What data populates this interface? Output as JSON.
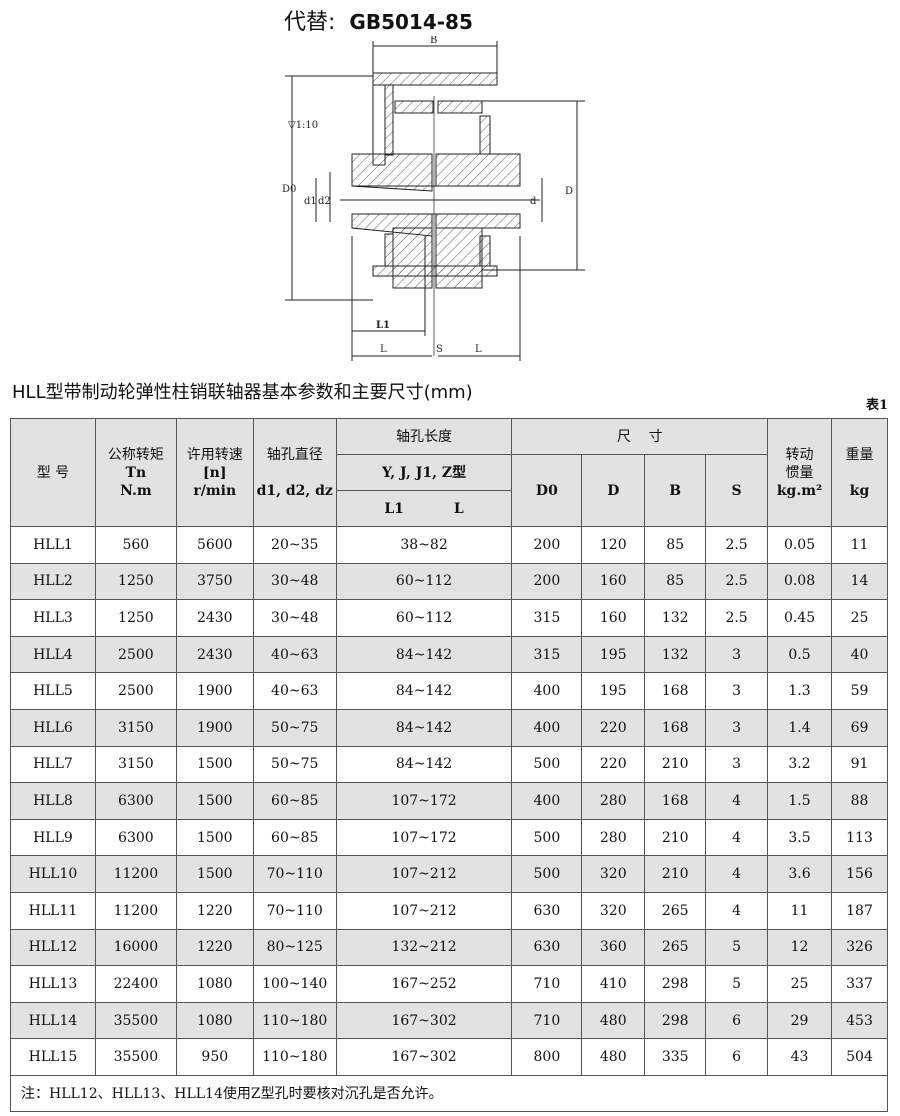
{
  "header": {
    "prefix": "代替:",
    "standard": "GB5014-85"
  },
  "drawing": {
    "labels": {
      "B": "B",
      "taper": "▽1:10",
      "D0": "D0",
      "d1": "d1",
      "d2": "d2",
      "d": "d",
      "D": "D",
      "L1": "L1",
      "L_left": "L",
      "S": "S",
      "L_right": "L"
    }
  },
  "caption": "HLL型带制动轮弹性柱销联轴器基本参数和主要尺寸(mm)",
  "table_no": "表1",
  "table": {
    "headers": {
      "model": "型 号",
      "torque": [
        "公称转矩",
        "Tn",
        "N.m"
      ],
      "speed": [
        "许用转速",
        "[n]",
        "r/min"
      ],
      "bore": [
        "轴孔直径",
        "d1, d2, dz"
      ],
      "length": "轴孔长度",
      "length_types": "Y, J, J1, Z型",
      "length_sub": [
        "L1",
        "L"
      ],
      "size": "尺    寸",
      "D0": "D0",
      "D": "D",
      "B": "B",
      "S": "S",
      "inertia": [
        "转动",
        "惯量",
        "kg.m²"
      ],
      "weight": [
        "重量",
        "kg"
      ]
    },
    "rows": [
      [
        "HLL1",
        "560",
        "5600",
        "20~35",
        "38~82",
        "200",
        "120",
        "85",
        "2.5",
        "0.05",
        "11"
      ],
      [
        "HLL2",
        "1250",
        "3750",
        "30~48",
        "60~112",
        "200",
        "160",
        "85",
        "2.5",
        "0.08",
        "14"
      ],
      [
        "HLL3",
        "1250",
        "2430",
        "30~48",
        "60~112",
        "315",
        "160",
        "132",
        "2.5",
        "0.45",
        "25"
      ],
      [
        "HLL4",
        "2500",
        "2430",
        "40~63",
        "84~142",
        "315",
        "195",
        "132",
        "3",
        "0.5",
        "40"
      ],
      [
        "HLL5",
        "2500",
        "1900",
        "40~63",
        "84~142",
        "400",
        "195",
        "168",
        "3",
        "1.3",
        "59"
      ],
      [
        "HLL6",
        "3150",
        "1900",
        "50~75",
        "84~142",
        "400",
        "220",
        "168",
        "3",
        "1.4",
        "69"
      ],
      [
        "HLL7",
        "3150",
        "1500",
        "50~75",
        "84~142",
        "500",
        "220",
        "210",
        "3",
        "3.2",
        "91"
      ],
      [
        "HLL8",
        "6300",
        "1500",
        "60~85",
        "107~172",
        "400",
        "280",
        "168",
        "4",
        "1.5",
        "88"
      ],
      [
        "HLL9",
        "6300",
        "1500",
        "60~85",
        "107~172",
        "500",
        "280",
        "210",
        "4",
        "3.5",
        "113"
      ],
      [
        "HLL10",
        "11200",
        "1500",
        "70~110",
        "107~212",
        "500",
        "320",
        "210",
        "4",
        "3.6",
        "156"
      ],
      [
        "HLL11",
        "11200",
        "1220",
        "70~110",
        "107~212",
        "630",
        "320",
        "265",
        "4",
        "11",
        "187"
      ],
      [
        "HLL12",
        "16000",
        "1220",
        "80~125",
        "132~212",
        "630",
        "360",
        "265",
        "5",
        "12",
        "326"
      ],
      [
        "HLL13",
        "22400",
        "1080",
        "100~140",
        "167~252",
        "710",
        "410",
        "298",
        "5",
        "25",
        "337"
      ],
      [
        "HLL14",
        "35500",
        "1080",
        "110~180",
        "167~302",
        "710",
        "480",
        "298",
        "6",
        "29",
        "453"
      ],
      [
        "HLL15",
        "35500",
        "950",
        "110~180",
        "167~302",
        "800",
        "480",
        "335",
        "6",
        "43",
        "504"
      ]
    ],
    "note": "注：HLL12、HLL13、HLL14使用Z型孔时要核对沉孔是否允许。"
  }
}
